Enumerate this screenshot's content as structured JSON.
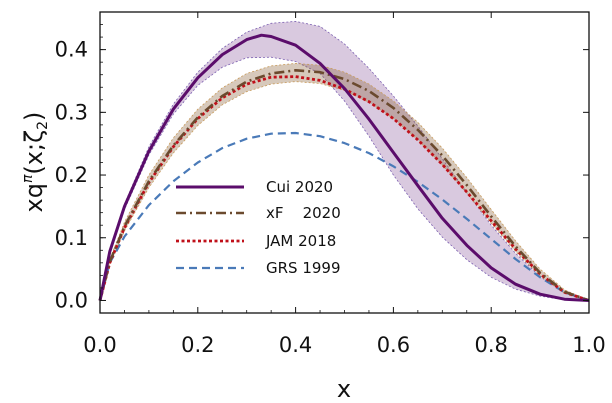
{
  "chart_data": {
    "type": "line",
    "xlabel": "x",
    "ylabel": "xq",
    "ylabel_sup": "π",
    "ylabel_args": "(x;ζ",
    "ylabel_sub": "2",
    "ylabel_close": ")",
    "xlim": [
      0,
      1
    ],
    "ylim": [
      -0.02,
      0.46
    ],
    "x_ticks": [
      "0.0",
      "0.2",
      "0.4",
      "0.6",
      "0.8",
      "1.0"
    ],
    "y_ticks": [
      "0.0",
      "0.1",
      "0.2",
      "0.3",
      "0.4"
    ],
    "x_tick_values": [
      0,
      0.2,
      0.4,
      0.6,
      0.8,
      1.0
    ],
    "y_tick_values": [
      0,
      0.1,
      0.2,
      0.3,
      0.4
    ],
    "legend_position": "center-left",
    "series": [
      {
        "name": "Cui 2020",
        "color": "#5b0d6b",
        "style": "solid",
        "points": [
          [
            0.0,
            0.0
          ],
          [
            0.02,
            0.078
          ],
          [
            0.05,
            0.15
          ],
          [
            0.1,
            0.238
          ],
          [
            0.15,
            0.305
          ],
          [
            0.2,
            0.355
          ],
          [
            0.25,
            0.392
          ],
          [
            0.3,
            0.416
          ],
          [
            0.33,
            0.423
          ],
          [
            0.35,
            0.421
          ],
          [
            0.4,
            0.407
          ],
          [
            0.45,
            0.378
          ],
          [
            0.5,
            0.338
          ],
          [
            0.55,
            0.289
          ],
          [
            0.6,
            0.236
          ],
          [
            0.65,
            0.183
          ],
          [
            0.7,
            0.131
          ],
          [
            0.75,
            0.088
          ],
          [
            0.8,
            0.052
          ],
          [
            0.85,
            0.026
          ],
          [
            0.9,
            0.01
          ],
          [
            0.95,
            0.002
          ],
          [
            1.0,
            0.0
          ]
        ],
        "band_upper": [
          [
            0.0,
            0.0
          ],
          [
            0.02,
            0.08
          ],
          [
            0.05,
            0.154
          ],
          [
            0.1,
            0.245
          ],
          [
            0.15,
            0.313
          ],
          [
            0.2,
            0.364
          ],
          [
            0.25,
            0.402
          ],
          [
            0.3,
            0.428
          ],
          [
            0.35,
            0.442
          ],
          [
            0.4,
            0.445
          ],
          [
            0.45,
            0.437
          ],
          [
            0.5,
            0.409
          ],
          [
            0.55,
            0.37
          ],
          [
            0.6,
            0.326
          ],
          [
            0.65,
            0.278
          ],
          [
            0.7,
            0.226
          ],
          [
            0.75,
            0.172
          ],
          [
            0.8,
            0.12
          ],
          [
            0.85,
            0.075
          ],
          [
            0.9,
            0.038
          ],
          [
            0.95,
            0.012
          ],
          [
            1.0,
            0.0
          ]
        ],
        "band_lower": [
          [
            0.0,
            0.0
          ],
          [
            0.02,
            0.075
          ],
          [
            0.05,
            0.145
          ],
          [
            0.1,
            0.232
          ],
          [
            0.15,
            0.297
          ],
          [
            0.2,
            0.343
          ],
          [
            0.25,
            0.372
          ],
          [
            0.3,
            0.387
          ],
          [
            0.35,
            0.388
          ],
          [
            0.4,
            0.381
          ],
          [
            0.45,
            0.362
          ],
          [
            0.5,
            0.318
          ],
          [
            0.55,
            0.262
          ],
          [
            0.6,
            0.2
          ],
          [
            0.65,
            0.146
          ],
          [
            0.7,
            0.101
          ],
          [
            0.75,
            0.065
          ],
          [
            0.8,
            0.037
          ],
          [
            0.85,
            0.018
          ],
          [
            0.9,
            0.007
          ],
          [
            0.95,
            0.001
          ],
          [
            1.0,
            0.0
          ]
        ]
      },
      {
        "name": "xF    2020",
        "color": "#6b4a2e",
        "style": "dashdot",
        "points": [
          [
            0.0,
            0.0
          ],
          [
            0.02,
            0.062
          ],
          [
            0.05,
            0.118
          ],
          [
            0.1,
            0.19
          ],
          [
            0.15,
            0.247
          ],
          [
            0.2,
            0.292
          ],
          [
            0.25,
            0.326
          ],
          [
            0.3,
            0.349
          ],
          [
            0.35,
            0.362
          ],
          [
            0.4,
            0.367
          ],
          [
            0.45,
            0.364
          ],
          [
            0.5,
            0.353
          ],
          [
            0.55,
            0.334
          ],
          [
            0.6,
            0.307
          ],
          [
            0.65,
            0.272
          ],
          [
            0.7,
            0.231
          ],
          [
            0.75,
            0.184
          ],
          [
            0.8,
            0.134
          ],
          [
            0.85,
            0.086
          ],
          [
            0.9,
            0.044
          ],
          [
            0.95,
            0.014
          ],
          [
            1.0,
            0.0
          ]
        ],
        "band_upper": [
          [
            0.0,
            0.0
          ],
          [
            0.02,
            0.066
          ],
          [
            0.05,
            0.125
          ],
          [
            0.1,
            0.2
          ],
          [
            0.15,
            0.259
          ],
          [
            0.2,
            0.305
          ],
          [
            0.25,
            0.339
          ],
          [
            0.3,
            0.362
          ],
          [
            0.35,
            0.374
          ],
          [
            0.4,
            0.378
          ],
          [
            0.45,
            0.375
          ],
          [
            0.5,
            0.364
          ],
          [
            0.55,
            0.345
          ],
          [
            0.6,
            0.318
          ],
          [
            0.65,
            0.284
          ],
          [
            0.7,
            0.243
          ],
          [
            0.75,
            0.196
          ],
          [
            0.8,
            0.145
          ],
          [
            0.85,
            0.095
          ],
          [
            0.9,
            0.05
          ],
          [
            0.95,
            0.017
          ],
          [
            1.0,
            0.0
          ]
        ],
        "band_lower": [
          [
            0.0,
            0.0
          ],
          [
            0.02,
            0.058
          ],
          [
            0.05,
            0.111
          ],
          [
            0.1,
            0.18
          ],
          [
            0.15,
            0.235
          ],
          [
            0.2,
            0.279
          ],
          [
            0.25,
            0.312
          ],
          [
            0.3,
            0.333
          ],
          [
            0.35,
            0.345
          ],
          [
            0.4,
            0.349
          ],
          [
            0.45,
            0.346
          ],
          [
            0.5,
            0.335
          ],
          [
            0.55,
            0.316
          ],
          [
            0.6,
            0.29
          ],
          [
            0.65,
            0.256
          ],
          [
            0.7,
            0.216
          ],
          [
            0.75,
            0.171
          ],
          [
            0.8,
            0.123
          ],
          [
            0.85,
            0.078
          ],
          [
            0.9,
            0.039
          ],
          [
            0.95,
            0.012
          ],
          [
            1.0,
            0.0
          ]
        ]
      },
      {
        "name": "JAM 2018",
        "color": "#c0101a",
        "style": "dotted",
        "points": [
          [
            0.0,
            0.0
          ],
          [
            0.02,
            0.06
          ],
          [
            0.05,
            0.116
          ],
          [
            0.1,
            0.188
          ],
          [
            0.15,
            0.245
          ],
          [
            0.2,
            0.29
          ],
          [
            0.25,
            0.323
          ],
          [
            0.3,
            0.345
          ],
          [
            0.35,
            0.356
          ],
          [
            0.4,
            0.357
          ],
          [
            0.45,
            0.351
          ],
          [
            0.5,
            0.337
          ],
          [
            0.55,
            0.317
          ],
          [
            0.6,
            0.29
          ],
          [
            0.65,
            0.256
          ],
          [
            0.7,
            0.217
          ],
          [
            0.75,
            0.173
          ],
          [
            0.8,
            0.127
          ],
          [
            0.85,
            0.082
          ],
          [
            0.9,
            0.042
          ],
          [
            0.95,
            0.013
          ],
          [
            1.0,
            0.0
          ]
        ]
      },
      {
        "name": "GRS 1999",
        "color": "#4a7ab8",
        "style": "dashed",
        "points": [
          [
            0.0,
            0.0
          ],
          [
            0.02,
            0.06
          ],
          [
            0.05,
            0.102
          ],
          [
            0.1,
            0.152
          ],
          [
            0.15,
            0.19
          ],
          [
            0.2,
            0.22
          ],
          [
            0.25,
            0.243
          ],
          [
            0.3,
            0.258
          ],
          [
            0.35,
            0.266
          ],
          [
            0.4,
            0.267
          ],
          [
            0.45,
            0.262
          ],
          [
            0.5,
            0.251
          ],
          [
            0.55,
            0.235
          ],
          [
            0.6,
            0.214
          ],
          [
            0.65,
            0.189
          ],
          [
            0.7,
            0.161
          ],
          [
            0.75,
            0.13
          ],
          [
            0.8,
            0.098
          ],
          [
            0.85,
            0.066
          ],
          [
            0.9,
            0.037
          ],
          [
            0.95,
            0.013
          ],
          [
            1.0,
            0.0
          ]
        ]
      }
    ]
  }
}
